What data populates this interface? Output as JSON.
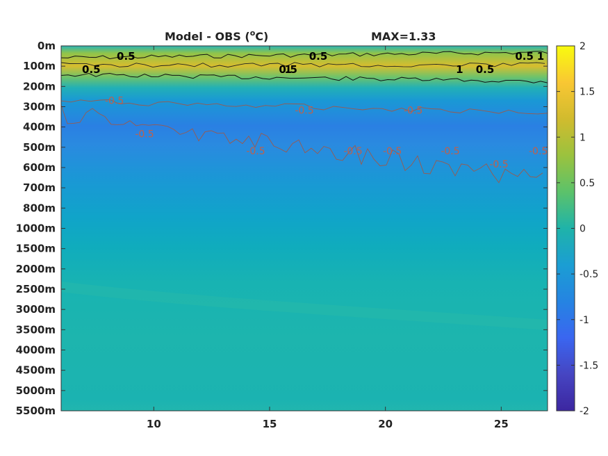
{
  "chart_data": {
    "type": "heatmap",
    "title": "Model - OBS (",
    "title_sup": "o",
    "title_unit": "C)",
    "max_label": "MAX=1.33",
    "xlim": [
      6,
      27
    ],
    "x_ticks": [
      10,
      15,
      20,
      25
    ],
    "x_tick_labels": [
      "10",
      "15",
      "20",
      "25"
    ],
    "y_tick_labels": [
      "0m",
      "100m",
      "200m",
      "300m",
      "400m",
      "500m",
      "600m",
      "700m",
      "800m",
      "1000m",
      "1500m",
      "2000m",
      "2500m",
      "3000m",
      "3500m",
      "4000m",
      "4500m",
      "5000m",
      "5500m"
    ],
    "colorbar": {
      "range": [
        -2,
        2
      ],
      "ticks": [
        "2",
        "1.5",
        "1",
        "0.5",
        "0",
        "-0.5",
        "-1",
        "-1.5",
        "-2"
      ],
      "colormap": "parula"
    },
    "depth_profile": [
      {
        "depth": "0m",
        "value": 0.1
      },
      {
        "depth": "100m",
        "value": 1.0
      },
      {
        "depth": "200m",
        "value": 0.15
      },
      {
        "depth": "300m",
        "value": -0.5
      },
      {
        "depth": "400m",
        "value": -0.6
      },
      {
        "depth": "500m",
        "value": -0.45
      },
      {
        "depth": "600m",
        "value": -0.4
      },
      {
        "depth": "700m",
        "value": -0.3
      },
      {
        "depth": "800m",
        "value": -0.2
      },
      {
        "depth": "1000m",
        "value": -0.15
      },
      {
        "depth": "1500m",
        "value": -0.05
      },
      {
        "depth": "2000m",
        "value": 0.05
      },
      {
        "depth": "2500m",
        "value": 0.1
      },
      {
        "depth": "3000m",
        "value": 0.08
      },
      {
        "depth": "3500m",
        "value": 0.06
      },
      {
        "depth": "4000m",
        "value": 0.05
      },
      {
        "depth": "4500m",
        "value": 0.05
      },
      {
        "depth": "5000m",
        "value": 0.05
      },
      {
        "depth": "5500m",
        "value": 0.1
      }
    ],
    "contour_labels": [
      {
        "text": "0.5",
        "x": 8.8,
        "depth": "0m"
      },
      {
        "text": "0.5",
        "x": 17.1,
        "depth": "0m"
      },
      {
        "text": "0.5",
        "x": 26.0,
        "depth": "0m"
      },
      {
        "text": "0.5",
        "x": 7.3,
        "depth": "100m"
      },
      {
        "text": "1",
        "x": 15.8,
        "depth": "100m"
      },
      {
        "text": "1",
        "x": 23.2,
        "depth": "100m"
      },
      {
        "text": "1",
        "x": 26.7,
        "depth": "0m"
      },
      {
        "text": "0.5",
        "x": 15.8,
        "depth": "100m"
      },
      {
        "text": "0.5",
        "x": 24.3,
        "depth": "100m"
      },
      {
        "text": "-0.5",
        "x": 8.3,
        "depth": "200m"
      },
      {
        "text": "-0.5",
        "x": 16.5,
        "depth": "300m"
      },
      {
        "text": "-0.5",
        "x": 21.2,
        "depth": "300m"
      },
      {
        "text": "-0.5",
        "x": 9.6,
        "depth": "400m"
      },
      {
        "text": "-0.5",
        "x": 14.4,
        "depth": "500m"
      },
      {
        "text": "-0.5",
        "x": 18.6,
        "depth": "500m"
      },
      {
        "text": "-0.5",
        "x": 20.3,
        "depth": "500m"
      },
      {
        "text": "-0.5",
        "x": 22.8,
        "depth": "500m"
      },
      {
        "text": "-0.5",
        "x": 24.9,
        "depth": "600m"
      },
      {
        "text": "-0.5",
        "x": 26.6,
        "depth": "500m"
      }
    ]
  }
}
